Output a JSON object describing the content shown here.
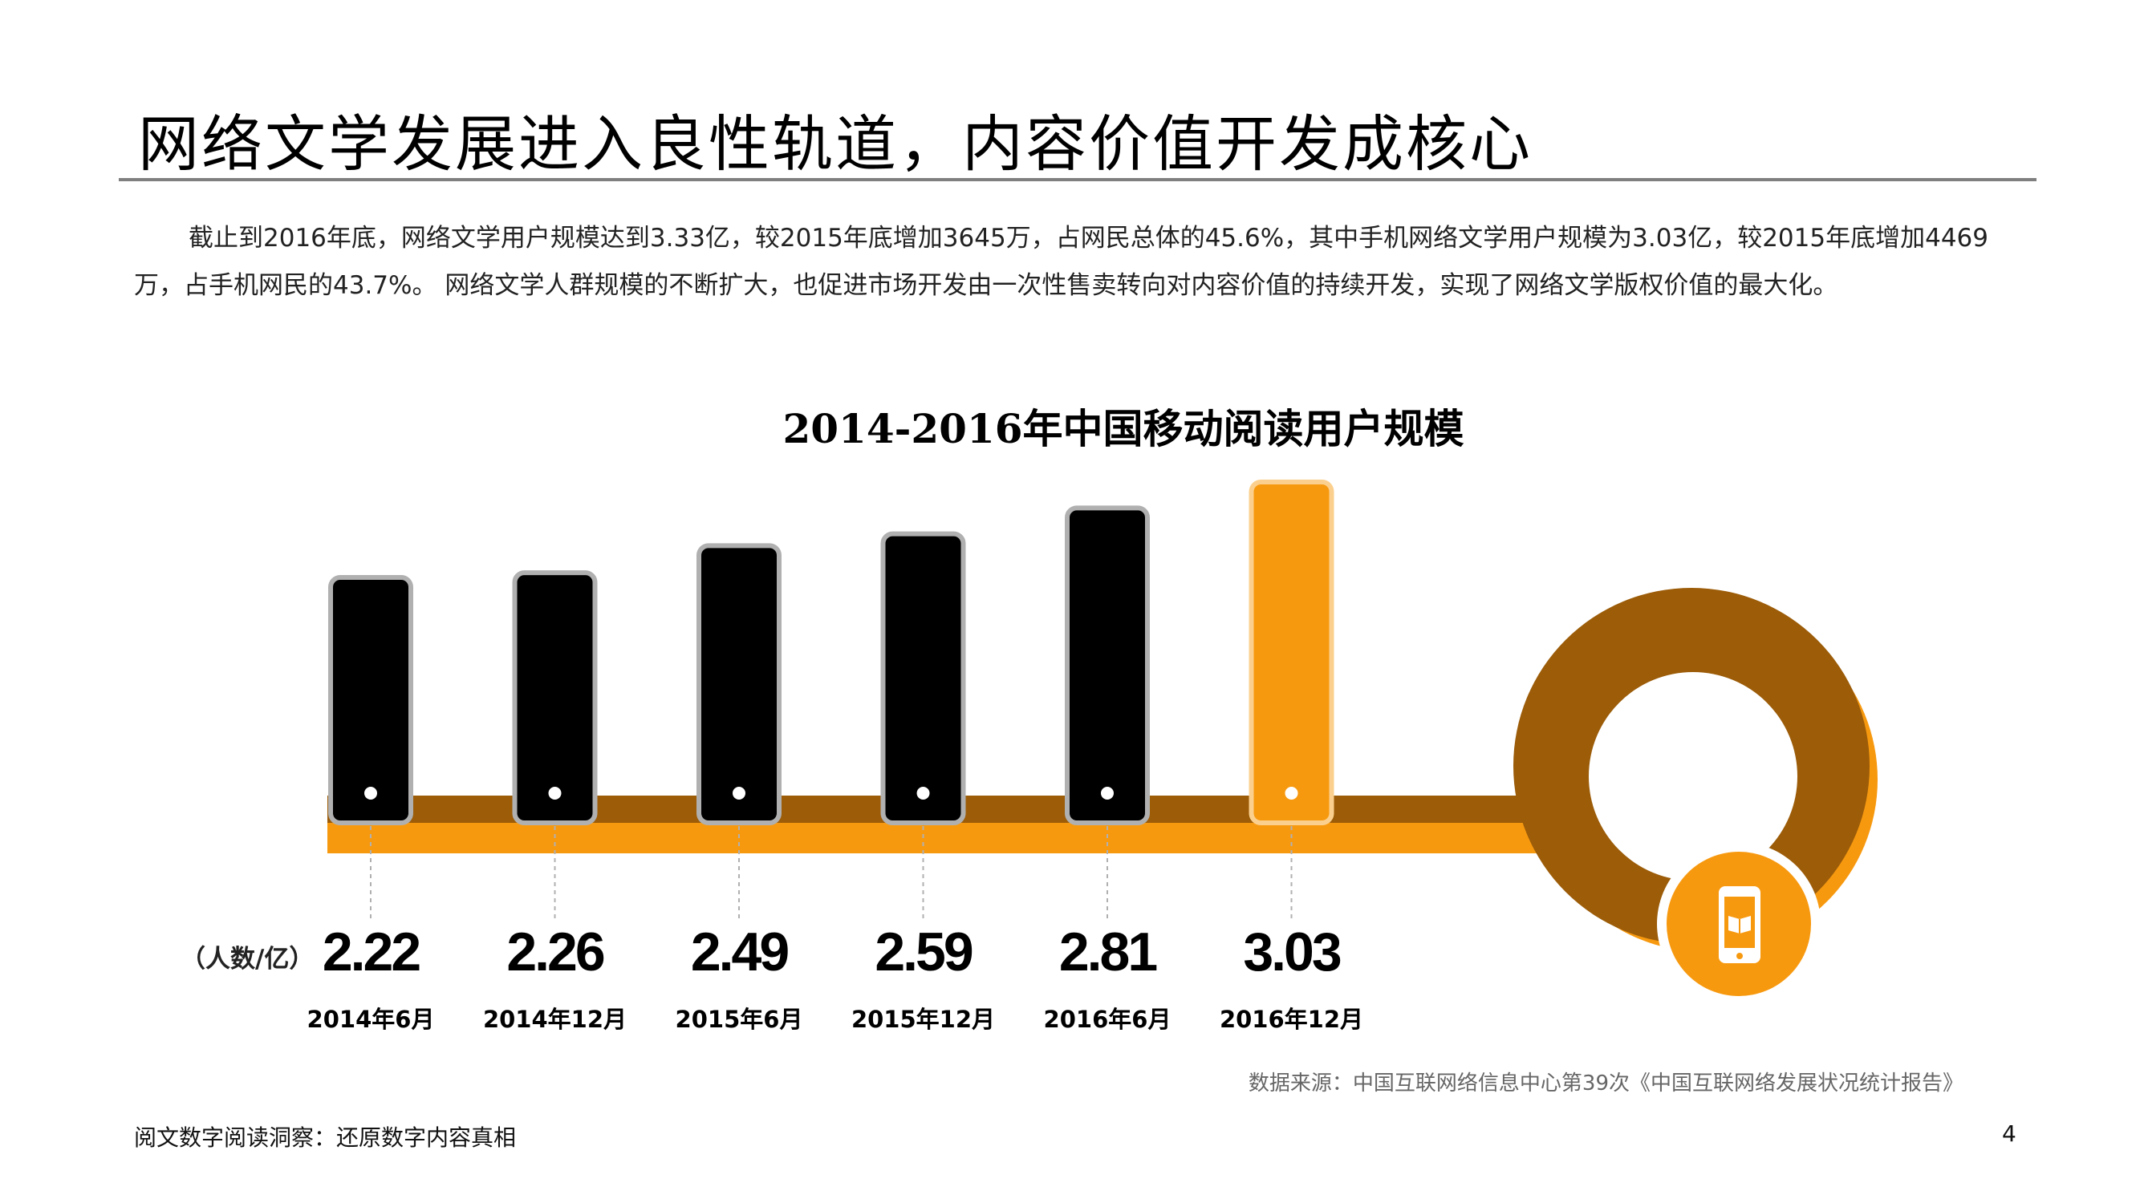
{
  "page": {
    "title": "网络文学发展进入良性轨道，内容价值开发成核心",
    "intro": "截止到2016年底，网络文学用户规模达到3.33亿，较2015年底增加3645万，占网民总体的45.6%，其中手机网络文学用户规模为3.03亿，较2015年底增加4469万，占手机网民的43.7%。 网络文学人群规模的不断扩大，也促进市场开发由一次性售卖转向对内容价值的持续开发，实现了网络文学版权价值的最大化。",
    "unit_label": "（人数/亿）",
    "source": "数据来源：中国互联网络信息中心第39次《中国互联网络发展状况统计报告》",
    "footer": "阅文数字阅读洞察：还原数字内容真相",
    "page_number": "4"
  },
  "colors": {
    "bar": "#000000",
    "bar_border": "#b0b0b0",
    "highlight": "#f7990f",
    "highlight_border": "#fbd08e",
    "brown": "#9c5c08",
    "orange": "#f7990f"
  },
  "icons": {
    "phone": "mobile-book-icon"
  },
  "chart_data": {
    "type": "bar",
    "title": "2014-2016年中国移动阅读用户规模",
    "categories": [
      "2014年6月",
      "2014年12月",
      "2015年6月",
      "2015年12月",
      "2016年6月",
      "2016年12月"
    ],
    "values": [
      2.22,
      2.26,
      2.49,
      2.59,
      2.81,
      3.03
    ],
    "value_labels": [
      "2.22",
      "2.26",
      "2.49",
      "2.59",
      "2.81",
      "3.03"
    ],
    "highlight_index": 5,
    "grid": false,
    "legend": "none"
  }
}
